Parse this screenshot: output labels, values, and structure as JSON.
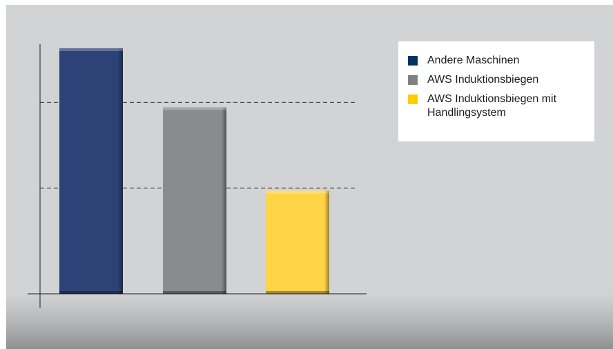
{
  "chart_data": {
    "type": "bar",
    "title": "",
    "xlabel": "",
    "ylabel": "",
    "categories": [
      "Andere Maschinen",
      "AWS Induktionsbiegen",
      "AWS Induktionsbiegen mit Handlingsystem"
    ],
    "values": [
      100,
      76,
      42
    ],
    "ylim": [
      0,
      100
    ],
    "reference_lines": [
      78,
      43
    ],
    "grid": false,
    "legend_position": "top-right",
    "colors": [
      "#2d4378",
      "#8a8b8d",
      "#ffd447"
    ],
    "series": [
      {
        "name": "Andere Maschinen",
        "color": "#2d4378"
      },
      {
        "name": "AWS Induktionsbiegen",
        "color": "#8a8b8d"
      },
      {
        "name": "AWS Induktionsbiegen mit Handlingsystem",
        "color": "#ffd447"
      }
    ]
  },
  "legend": {
    "items": [
      {
        "label": "Andere Maschinen",
        "color": "#003366"
      },
      {
        "label": "AWS Induktionsbiegen",
        "color": "#808184"
      },
      {
        "label": "AWS Induktionsbiegen mit Handlingsystem",
        "color": "#ffcc00"
      }
    ]
  }
}
